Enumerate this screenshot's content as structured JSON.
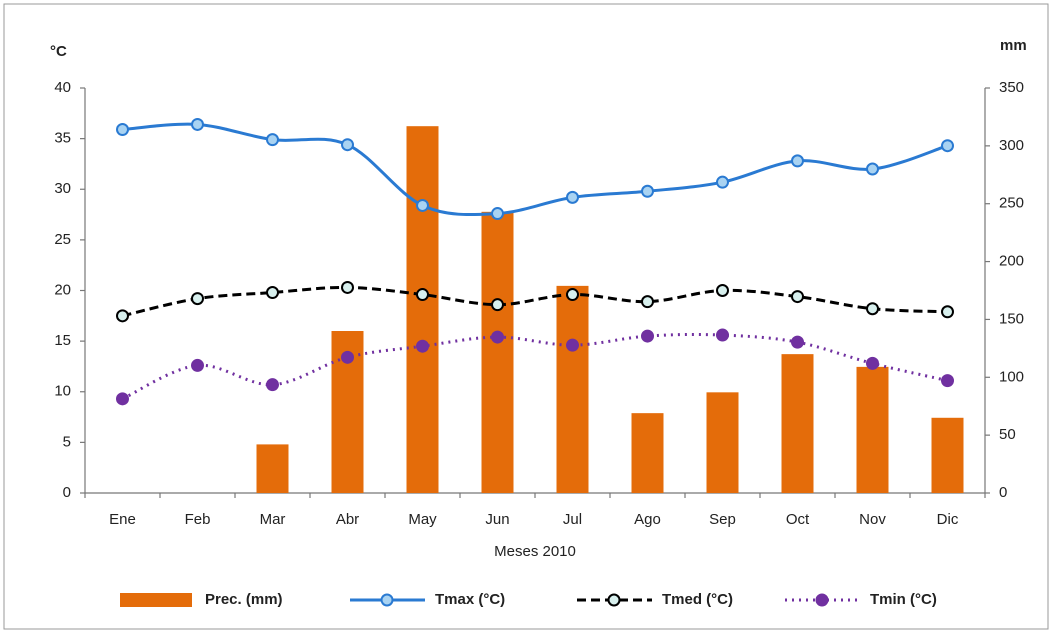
{
  "chart_data": {
    "type": "bar-line",
    "y_label": "°C",
    "y2_label": "mm",
    "x_label": "Meses 2010",
    "categories": [
      "Ene",
      "Feb",
      "Mar",
      "Abr",
      "May",
      "Jun",
      "Jul",
      "Ago",
      "Sep",
      "Oct",
      "Nov",
      "Dic"
    ],
    "ylim": [
      0,
      40
    ],
    "yticks": [
      0,
      5,
      10,
      15,
      20,
      25,
      30,
      35,
      40
    ],
    "y2lim": [
      0,
      350
    ],
    "y2ticks": [
      0,
      50,
      100,
      150,
      200,
      250,
      300,
      350
    ],
    "series": [
      {
        "name": "Prec. (mm)",
        "kind": "bar",
        "axis": "y2",
        "color": "#e46c0a",
        "values": [
          0,
          0,
          42,
          140,
          317,
          243,
          179,
          69,
          87,
          120,
          109,
          65
        ]
      },
      {
        "name": "Tmax (°C)",
        "kind": "line",
        "style": "solid",
        "color": "#2a7ad2",
        "marker_fill": "#a9d3f2",
        "values": [
          35.9,
          36.4,
          34.9,
          34.4,
          28.4,
          27.6,
          29.2,
          29.8,
          30.7,
          32.8,
          32.0,
          34.3
        ]
      },
      {
        "name": "Tmed (°C)",
        "kind": "line",
        "style": "dashed",
        "color": "#000000",
        "marker_fill": "#d8f0ee",
        "values": [
          17.5,
          19.2,
          19.8,
          20.3,
          19.6,
          18.6,
          19.6,
          18.9,
          20.0,
          19.4,
          18.2,
          17.9
        ]
      },
      {
        "name": "Tmin (°C)",
        "kind": "line",
        "style": "dotted",
        "color": "#7030a0",
        "marker_fill": "#7030a0",
        "values": [
          9.3,
          12.6,
          10.7,
          13.4,
          14.5,
          15.4,
          14.6,
          15.5,
          15.6,
          14.9,
          12.8,
          11.1
        ]
      }
    ]
  }
}
